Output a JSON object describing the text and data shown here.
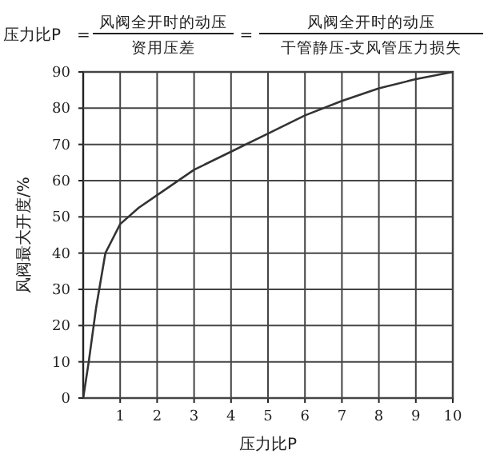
{
  "chart_data": {
    "type": "line",
    "title": "压力比P",
    "annotations": [
      "=",
      "风阀全开时的动压",
      "资用压差",
      "=",
      "风阀全开时的动压",
      "干管静压-支风管压力损失"
    ],
    "xlabel": "压力比P",
    "ylabel": "风阀最大开度/%",
    "x": [
      0,
      0.15,
      0.35,
      0.6,
      0.8,
      1,
      1.5,
      2,
      3,
      4,
      5,
      6,
      7,
      8,
      9,
      10
    ],
    "series": [
      {
        "color": "#333333",
        "values": [
          0,
          10,
          25,
          40,
          44,
          48,
          52.5,
          56,
          63,
          68,
          73,
          78,
          82,
          85.5,
          88,
          90
        ]
      }
    ],
    "xlim": [
      0,
      10
    ],
    "xticks": [
      1,
      2,
      3,
      4,
      5,
      6,
      7,
      8,
      9,
      10
    ],
    "ylim": [
      0,
      90
    ],
    "yticks": [
      0,
      10,
      20,
      30,
      40,
      50,
      60,
      70,
      80,
      90
    ],
    "grid": true,
    "marker": "none",
    "line_style": "solid"
  }
}
